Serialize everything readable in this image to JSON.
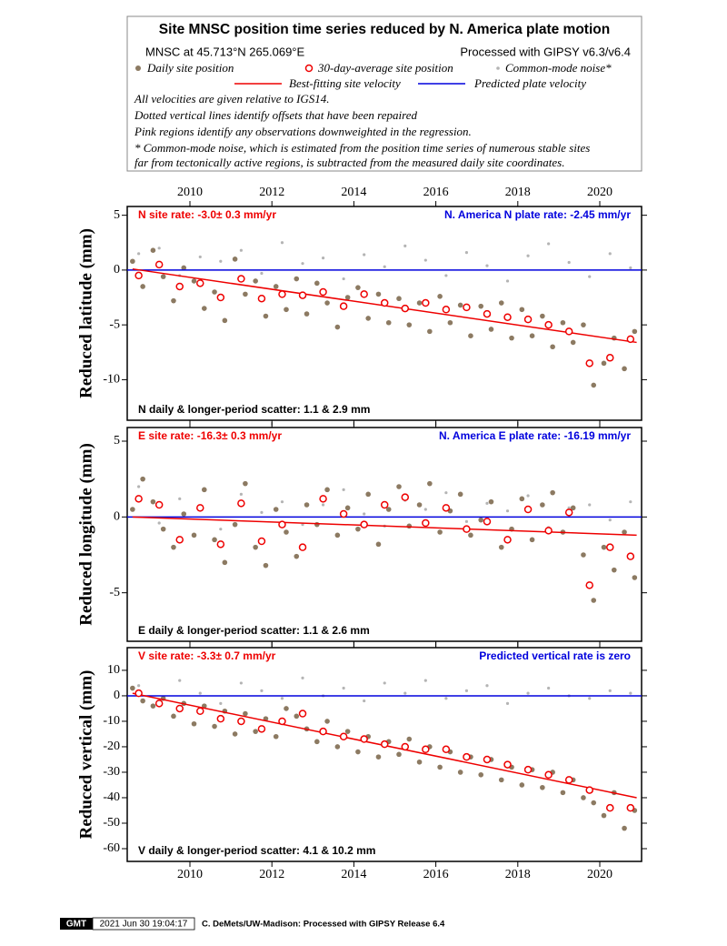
{
  "header": {
    "title": "Site MNSC position time series reduced by N. America plate motion",
    "site": "MNSC at 45.713°N 265.069°E",
    "processing": "Processed with GIPSY v6.3/v6.4",
    "legend": [
      "Daily site position",
      "30-day-average site position",
      "Common-mode noise*",
      "Best-fitting site velocity",
      "Predicted plate velocity"
    ],
    "notes": [
      "All velocities are given relative to IGS14.",
      "Dotted vertical lines identify offsets that have been repaired",
      "Pink regions identify any observations downweighted in the regression.",
      "* Common-mode noise, which is estimated from the position time series of numerous stable sites",
      "far from tectonically active regions, is subtracted from the measured daily site coordinates."
    ]
  },
  "footer": {
    "logo": "GMT",
    "timestamp": "2021 Jun 30 19:04:17",
    "credit": "C. DeMets/UW-Madison: Processed with GIPSY Release 6.4"
  },
  "chart_data": [
    {
      "type": "scatter",
      "ylabel": "Reduced latitude (mm)",
      "site_rate": "N site rate:  -3.0± 0.3 mm/yr",
      "plate_rate": "N. America N plate rate: -2.45 mm/yr",
      "scatter": "N daily & longer-period scatter:   1.1 &   2.9 mm",
      "xlim": [
        2008.47,
        2021.02
      ],
      "xticks": [
        2010,
        2012,
        2014,
        2016,
        2018,
        2020
      ],
      "ylim": [
        -13.7,
        5.8
      ],
      "yticks": [
        5,
        0,
        -5,
        -10
      ],
      "noise": {
        "color": "#b4b4b4",
        "x": [
          2008.75,
          2009.25,
          2009.75,
          2010.25,
          2010.75,
          2011.25,
          2011.75,
          2012.25,
          2012.75,
          2013.25,
          2013.75,
          2014.25,
          2014.75,
          2015.25,
          2015.75,
          2016.25,
          2016.75,
          2017.25,
          2017.75,
          2018.25,
          2018.75,
          2019.25,
          2019.75,
          2020.25,
          2020.75
        ],
        "values": [
          1.5,
          2.0,
          -0.5,
          1.2,
          0.8,
          1.8,
          -0.3,
          2.5,
          0.6,
          1.1,
          -0.8,
          1.4,
          0.3,
          2.2,
          0.9,
          -0.5,
          1.6,
          0.4,
          -1.0,
          1.3,
          2.4,
          0.7,
          -0.6,
          1.5,
          0.2
        ]
      },
      "daily": {
        "color": "#8c7a62",
        "x": [
          2008.6,
          2008.85,
          2009.1,
          2009.35,
          2009.6,
          2009.85,
          2010.1,
          2010.35,
          2010.6,
          2010.85,
          2011.1,
          2011.35,
          2011.6,
          2011.85,
          2012.1,
          2012.35,
          2012.6,
          2012.85,
          2013.1,
          2013.35,
          2013.6,
          2013.85,
          2014.1,
          2014.35,
          2014.6,
          2014.85,
          2015.1,
          2015.35,
          2015.6,
          2015.85,
          2016.1,
          2016.35,
          2016.6,
          2016.85,
          2017.1,
          2017.35,
          2017.6,
          2017.85,
          2018.1,
          2018.35,
          2018.6,
          2018.85,
          2019.1,
          2019.35,
          2019.6,
          2019.85,
          2020.1,
          2020.35,
          2020.6,
          2020.85
        ],
        "values": [
          0.8,
          -1.5,
          1.8,
          -0.6,
          -2.8,
          0.2,
          -1.0,
          -3.5,
          -2.0,
          -4.6,
          1.0,
          -2.2,
          -1.0,
          -4.2,
          -1.5,
          -3.6,
          -0.8,
          -4.0,
          -1.2,
          -3.0,
          -5.2,
          -2.5,
          -1.6,
          -4.4,
          -2.2,
          -4.8,
          -2.6,
          -5.0,
          -3.0,
          -5.6,
          -2.4,
          -4.8,
          -3.2,
          -6.0,
          -3.3,
          -5.4,
          -3.0,
          -6.2,
          -3.6,
          -6.0,
          -4.2,
          -7.0,
          -4.8,
          -6.6,
          -5.0,
          -10.5,
          -8.5,
          -6.2,
          -9.0,
          -5.6
        ]
      },
      "average": {
        "color": "#ee0000",
        "x": [
          2008.75,
          2009.25,
          2009.75,
          2010.25,
          2010.75,
          2011.25,
          2011.75,
          2012.25,
          2012.75,
          2013.25,
          2013.75,
          2014.25,
          2014.75,
          2015.25,
          2015.75,
          2016.25,
          2016.75,
          2017.25,
          2017.75,
          2018.25,
          2018.75,
          2019.25,
          2019.75,
          2020.25,
          2020.75
        ],
        "values": [
          -0.5,
          0.5,
          -1.5,
          -1.2,
          -2.5,
          -0.8,
          -2.6,
          -2.2,
          -2.3,
          -2.0,
          -3.3,
          -2.2,
          -3.0,
          -3.5,
          -3.0,
          -3.6,
          -3.4,
          -4.0,
          -4.3,
          -4.5,
          -5.0,
          -5.6,
          -8.5,
          -8.0,
          -6.3
        ]
      },
      "fit": {
        "color": "#ee0000",
        "x": [
          2008.6,
          2020.9
        ],
        "values": [
          0.1,
          -6.6
        ]
      },
      "plate": {
        "color": "#0000dd",
        "x": [
          2008.47,
          2021.02
        ],
        "values": [
          0,
          0
        ]
      }
    },
    {
      "type": "scatter",
      "ylabel": "Reduced longitude (mm)",
      "site_rate": "E site rate:  -16.3± 0.3 mm/yr",
      "plate_rate": "N. America E plate rate: -16.19 mm/yr",
      "scatter": "E daily & longer-period scatter:   1.1 &   2.6 mm",
      "xlim": [
        2008.47,
        2021.02
      ],
      "xticks": [
        2010,
        2012,
        2014,
        2016,
        2018,
        2020
      ],
      "ylim": [
        -8.2,
        5.9
      ],
      "yticks": [
        5,
        0,
        -5
      ],
      "noise": {
        "color": "#b4b4b4",
        "x": [
          2008.75,
          2009.25,
          2009.75,
          2010.25,
          2010.75,
          2011.25,
          2011.75,
          2012.25,
          2012.75,
          2013.25,
          2013.75,
          2014.25,
          2014.75,
          2015.25,
          2015.75,
          2016.25,
          2016.75,
          2017.25,
          2017.75,
          2018.25,
          2018.75,
          2019.25,
          2019.75,
          2020.25,
          2020.75
        ],
        "values": [
          2.0,
          -0.4,
          1.2,
          0.6,
          -0.8,
          1.5,
          0.3,
          1.0,
          -0.5,
          0.8,
          1.8,
          0.2,
          -0.6,
          1.1,
          0.5,
          1.6,
          -0.3,
          0.9,
          0.4,
          1.4,
          -0.7,
          0.6,
          0.8,
          -0.2,
          1.0
        ]
      },
      "daily": {
        "color": "#8c7a62",
        "x": [
          2008.6,
          2008.85,
          2009.1,
          2009.35,
          2009.6,
          2009.85,
          2010.1,
          2010.35,
          2010.6,
          2010.85,
          2011.1,
          2011.35,
          2011.6,
          2011.85,
          2012.1,
          2012.35,
          2012.6,
          2012.85,
          2013.1,
          2013.35,
          2013.6,
          2013.85,
          2014.1,
          2014.35,
          2014.6,
          2014.85,
          2015.1,
          2015.35,
          2015.6,
          2015.85,
          2016.1,
          2016.35,
          2016.6,
          2016.85,
          2017.1,
          2017.35,
          2017.6,
          2017.85,
          2018.1,
          2018.35,
          2018.6,
          2018.85,
          2019.1,
          2019.35,
          2019.6,
          2019.85,
          2020.1,
          2020.35,
          2020.6,
          2020.85
        ],
        "values": [
          0.5,
          2.5,
          1.0,
          -0.8,
          -2.0,
          0.2,
          -1.2,
          1.8,
          -1.5,
          -3.0,
          -0.5,
          2.2,
          -2.0,
          -3.2,
          0.5,
          -1.0,
          -2.6,
          0.8,
          -0.5,
          1.8,
          -1.2,
          0.6,
          -0.8,
          1.5,
          -1.8,
          0.5,
          2.0,
          -0.6,
          0.8,
          2.2,
          -1.0,
          0.4,
          1.5,
          -1.2,
          -0.2,
          1.0,
          -2.0,
          -0.8,
          1.2,
          -1.5,
          0.8,
          1.6,
          -1.0,
          0.6,
          -2.5,
          -5.5,
          -2.0,
          -3.5,
          -1.0,
          -4.0
        ]
      },
      "average": {
        "color": "#ee0000",
        "x": [
          2008.75,
          2009.25,
          2009.75,
          2010.25,
          2010.75,
          2011.25,
          2011.75,
          2012.25,
          2012.75,
          2013.25,
          2013.75,
          2014.25,
          2014.75,
          2015.25,
          2015.75,
          2016.25,
          2016.75,
          2017.25,
          2017.75,
          2018.25,
          2018.75,
          2019.25,
          2019.75,
          2020.25,
          2020.75
        ],
        "values": [
          1.2,
          0.8,
          -1.5,
          0.6,
          -1.8,
          0.9,
          -1.6,
          -0.5,
          -2.0,
          1.2,
          0.2,
          -0.5,
          0.8,
          1.3,
          -0.4,
          0.6,
          -0.8,
          -0.3,
          -1.5,
          0.5,
          -0.9,
          0.3,
          -4.5,
          -2.0,
          -2.6
        ]
      },
      "fit": {
        "color": "#ee0000",
        "x": [
          2008.6,
          2020.9
        ],
        "values": [
          0,
          -1.2
        ]
      },
      "plate": {
        "color": "#0000dd",
        "x": [
          2008.47,
          2021.02
        ],
        "values": [
          0,
          0
        ]
      }
    },
    {
      "type": "scatter",
      "ylabel": "Reduced vertical (mm)",
      "site_rate": "V site rate:  -3.3± 0.7 mm/yr",
      "plate_rate": "Predicted vertical rate is zero",
      "scatter": "V daily & longer-period scatter:   4.1 &  10.2 mm",
      "xlim": [
        2008.47,
        2021.02
      ],
      "xticks": [
        2010,
        2012,
        2014,
        2016,
        2018,
        2020
      ],
      "ylim": [
        -65,
        18.9
      ],
      "yticks": [
        10,
        0,
        -10,
        -20,
        -30,
        -40,
        -50,
        -60
      ],
      "noise": {
        "color": "#b4b4b4",
        "x": [
          2008.75,
          2009.25,
          2009.75,
          2010.25,
          2010.75,
          2011.25,
          2011.75,
          2012.25,
          2012.75,
          2013.25,
          2013.75,
          2014.25,
          2014.75,
          2015.25,
          2015.75,
          2016.25,
          2016.75,
          2017.25,
          2017.75,
          2018.25,
          2018.75,
          2019.25,
          2019.75,
          2020.25,
          2020.75
        ],
        "values": [
          4,
          -2,
          6,
          1,
          -3,
          5,
          2,
          -1,
          7,
          0,
          3,
          -2,
          5,
          1,
          6,
          -1,
          2,
          4,
          -3,
          1,
          3,
          0,
          -1,
          2,
          1
        ]
      },
      "daily": {
        "color": "#8c7a62",
        "x": [
          2008.6,
          2008.85,
          2009.1,
          2009.35,
          2009.6,
          2009.85,
          2010.1,
          2010.35,
          2010.6,
          2010.85,
          2011.1,
          2011.35,
          2011.6,
          2011.85,
          2012.1,
          2012.35,
          2012.6,
          2012.85,
          2013.1,
          2013.35,
          2013.6,
          2013.85,
          2014.1,
          2014.35,
          2014.6,
          2014.85,
          2015.1,
          2015.35,
          2015.6,
          2015.85,
          2016.1,
          2016.35,
          2016.6,
          2016.85,
          2017.1,
          2017.35,
          2017.6,
          2017.85,
          2018.1,
          2018.35,
          2018.6,
          2018.85,
          2019.1,
          2019.35,
          2019.6,
          2019.85,
          2020.1,
          2020.35,
          2020.6,
          2020.85
        ],
        "values": [
          3,
          -2,
          -4,
          -1,
          -8,
          -3,
          -11,
          -4,
          -12,
          -6,
          -15,
          -7,
          -14,
          -9,
          -16,
          -5,
          -8,
          -13,
          -18,
          -10,
          -20,
          -14,
          -22,
          -16,
          -24,
          -18,
          -23,
          -17,
          -26,
          -20,
          -28,
          -22,
          -30,
          -24,
          -31,
          -25,
          -33,
          -28,
          -35,
          -29,
          -36,
          -30,
          -38,
          -33,
          -40,
          -42,
          -47,
          -38,
          -52,
          -45
        ]
      },
      "average": {
        "color": "#ee0000",
        "x": [
          2008.75,
          2009.25,
          2009.75,
          2010.25,
          2010.75,
          2011.25,
          2011.75,
          2012.25,
          2012.75,
          2013.25,
          2013.75,
          2014.25,
          2014.75,
          2015.25,
          2015.75,
          2016.25,
          2016.75,
          2017.25,
          2017.75,
          2018.25,
          2018.75,
          2019.25,
          2019.75,
          2020.25,
          2020.75
        ],
        "values": [
          1,
          -3,
          -5,
          -6,
          -9,
          -10,
          -13,
          -10,
          -7,
          -14,
          -16,
          -17,
          -19,
          -20,
          -21,
          -21,
          -24,
          -25,
          -27,
          -29,
          -31,
          -33,
          -37,
          -44,
          -44
        ]
      },
      "fit": {
        "color": "#ee0000",
        "x": [
          2008.6,
          2020.9
        ],
        "values": [
          1,
          -40
        ]
      },
      "plate": {
        "color": "#0000dd",
        "x": [
          2008.47,
          2021.02
        ],
        "values": [
          0,
          0
        ]
      }
    }
  ]
}
